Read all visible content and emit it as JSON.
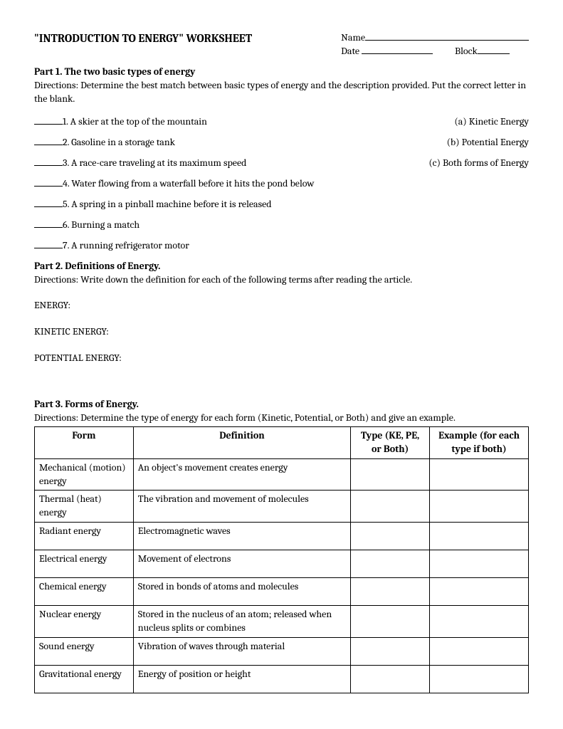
{
  "header": {
    "title": "\"INTRODUCTION TO ENERGY\" WORKSHEET",
    "name_label": "Name",
    "date_label": "Date",
    "block_label": "Block"
  },
  "part1": {
    "heading": "Part 1.  The two basic types of energy",
    "directions": "Directions:  Determine the best match between basic types of energy and the description provided. Put the correct letter in the blank.",
    "questions": [
      "1.  A skier at the top of the mountain",
      "2.  Gasoline in a storage tank",
      "3.  A race-care traveling at its maximum speed",
      "4.  Water flowing from a waterfall before it hits the pond below",
      "5.  A spring in a pinball machine before it is released",
      "6.  Burning a match",
      "7.  A running refrigerator motor"
    ],
    "options": [
      "(a) Kinetic Energy",
      "(b) Potential Energy",
      "(c) Both forms of Energy"
    ]
  },
  "part2": {
    "heading": "Part 2.  Definitions of Energy.",
    "directions": "Directions: Write down the definition for each of the following terms after reading the article.",
    "terms": [
      "ENERGY:",
      "KINETIC ENERGY:",
      "POTENTIAL ENERGY:"
    ]
  },
  "part3": {
    "heading": "Part 3.  Forms of Energy.",
    "directions": "Directions:  Determine the type of energy for each form (Kinetic, Potential, or Both) and give an example.",
    "columns": [
      "Form",
      "Definition",
      "Type  (KE, PE, or Both)",
      "Example (for each type if both)"
    ],
    "rows": [
      {
        "form": "Mechanical (motion) energy",
        "def": "An object's movement creates energy"
      },
      {
        "form": "Thermal (heat) energy",
        "def": "The vibration and movement of molecules"
      },
      {
        "form": "Radiant energy",
        "def": "Electromagnetic waves"
      },
      {
        "form": "Electrical energy",
        "def": "Movement of electrons"
      },
      {
        "form": "Chemical energy",
        "def": " Stored in bonds of atoms and molecules"
      },
      {
        "form": "Nuclear energy",
        "def": "Stored in the nucleus of an atom; released when nucleus splits or combines"
      },
      {
        "form": "Sound energy",
        "def": "Vibration of waves through material"
      },
      {
        "form": "Gravitational energy",
        "def": "Energy of position or height"
      }
    ]
  }
}
